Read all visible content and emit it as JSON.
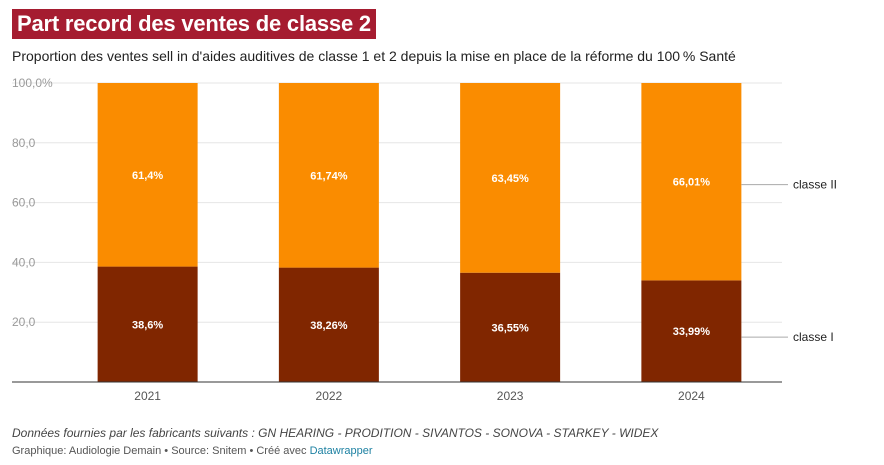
{
  "title": "Part record des ventes de classe 2",
  "subtitle": "Proportion des ventes sell in d'aides auditives de classe 1 et 2 depuis la mise en place de la réforme du 100 % Santé",
  "footer": {
    "notes": "Données fournies par les fabricants suivants : GN HEARING - PRODITION - SIVANTOS - SONOVA - STARKEY - WIDEX",
    "graphic_label": "Graphique: Audiologie Demain",
    "separator": " • ",
    "source_label": "Source: Snitem",
    "created_with_label": "Créé avec ",
    "created_with_link": "Datawrapper"
  },
  "colors": {
    "classe_I": "#802600",
    "classe_II": "#fa8c00",
    "title_bg": "#a51c30",
    "grid": "#e6e6e6",
    "axis_text": "#9a9a9a",
    "year_text": "#555555"
  },
  "chart_data": {
    "type": "bar",
    "stacked": true,
    "title": "Part record des ventes de classe 2",
    "categories": [
      "2021",
      "2022",
      "2023",
      "2024"
    ],
    "series": [
      {
        "name": "classe I",
        "values": [
          38.6,
          38.26,
          36.55,
          33.99
        ],
        "labels": [
          "38,6%",
          "38,26%",
          "36,55%",
          "33,99%"
        ]
      },
      {
        "name": "classe II",
        "values": [
          61.4,
          61.74,
          63.45,
          66.01
        ],
        "labels": [
          "61,4%",
          "61,74%",
          "63,45%",
          "66,01%"
        ]
      }
    ],
    "ylim": [
      0,
      100
    ],
    "yticks": [
      20,
      40,
      60,
      80,
      100
    ],
    "ytick_labels": [
      "20,0",
      "40,0",
      "60,0",
      "80,0",
      "100,0%"
    ],
    "legend_position": "right, direct labels",
    "grid": true,
    "xlabel": "",
    "ylabel": ""
  }
}
